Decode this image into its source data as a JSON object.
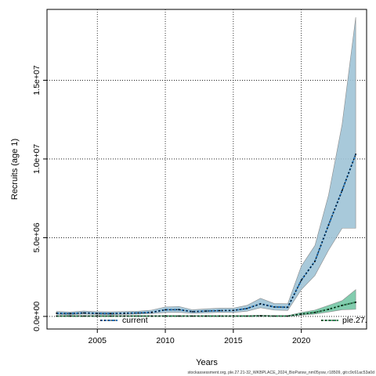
{
  "chart_data": {
    "type": "area",
    "xlabel": "Years",
    "ylabel": "Recruits (age 1)",
    "xlim": [
      2001.3,
      2024.8
    ],
    "ylim": [
      -800000,
      19500000
    ],
    "x_ticks": [
      2005,
      2010,
      2015,
      2020
    ],
    "x_tick_labels": [
      "2005",
      "2010",
      "2015",
      "2020"
    ],
    "y_ticks": [
      0,
      5000000,
      10000000,
      15000000
    ],
    "y_tick_labels": [
      "0.0e+00",
      "5.0e+06",
      "1.0e+07",
      "1.5e+07"
    ],
    "grid": true,
    "x": [
      2002,
      2003,
      2004,
      2005,
      2006,
      2007,
      2008,
      2009,
      2010,
      2011,
      2012,
      2013,
      2014,
      2015,
      2016,
      2017,
      2018,
      2019,
      2020,
      2021,
      2022,
      2023,
      2024
    ],
    "series": [
      {
        "name": "current",
        "color": "#2171b5",
        "band_color": "#9ec3d6",
        "values": [
          200000,
          180000,
          220000,
          190000,
          180000,
          200000,
          220000,
          260000,
          420000,
          430000,
          300000,
          340000,
          370000,
          380000,
          500000,
          800000,
          600000,
          580000,
          2300000,
          3500000,
          5800000,
          8000000,
          10300000
        ],
        "lower": [
          120000,
          100000,
          150000,
          120000,
          110000,
          130000,
          150000,
          180000,
          250000,
          260000,
          200000,
          220000,
          260000,
          250000,
          330000,
          550000,
          400000,
          380000,
          1700000,
          2600000,
          4200000,
          5600000,
          5600000
        ],
        "upper": [
          320000,
          280000,
          340000,
          300000,
          290000,
          310000,
          330000,
          400000,
          600000,
          630000,
          420000,
          480000,
          520000,
          520000,
          700000,
          1150000,
          820000,
          800000,
          3200000,
          4500000,
          7700000,
          12200000,
          19000000
        ]
      },
      {
        "name": "ple.27.",
        "color": "#2e8b57",
        "band_color": "#6cc3a0",
        "values": [
          20000,
          20000,
          20000,
          20000,
          20000,
          20000,
          20000,
          20000,
          20000,
          20000,
          20000,
          20000,
          20000,
          20000,
          20000,
          30000,
          20000,
          20000,
          150000,
          250000,
          450000,
          700000,
          900000
        ],
        "lower": [
          5000,
          5000,
          5000,
          5000,
          5000,
          5000,
          5000,
          5000,
          5000,
          5000,
          5000,
          5000,
          5000,
          5000,
          5000,
          10000,
          5000,
          5000,
          80000,
          150000,
          280000,
          420000,
          450000
        ],
        "upper": [
          50000,
          50000,
          50000,
          50000,
          50000,
          50000,
          50000,
          50000,
          50000,
          50000,
          50000,
          50000,
          50000,
          50000,
          50000,
          80000,
          50000,
          50000,
          250000,
          400000,
          700000,
          1000000,
          1700000
        ]
      }
    ],
    "legend": [
      {
        "label": "current",
        "placement": "bottom-left"
      },
      {
        "label": "ple.27.",
        "placement": "bottom-right"
      }
    ],
    "footer": "stockassessment.org, ple.27.21-32_WKBPLACE_2024_BioParsw_nm05ysw, r18509, git:c9c61ac53a0d"
  }
}
